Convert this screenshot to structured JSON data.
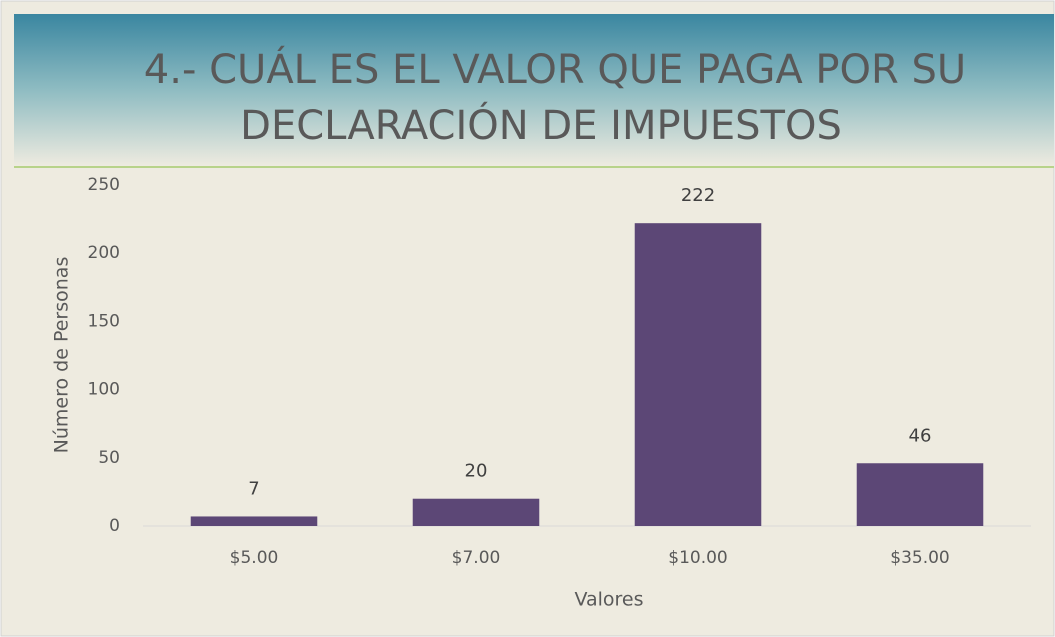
{
  "chart_data": {
    "type": "bar",
    "title": [
      "4.- CUÁL ES EL VALOR QUE PAGA  POR SU",
      "DECLARACIÓN DE IMPUESTOS"
    ],
    "x_label": "Valores",
    "y_label": "Número de Personas",
    "categories": [
      "$5.00",
      "$7.00",
      "$10.00",
      "$35.00"
    ],
    "values": [
      7,
      20,
      222,
      46
    ],
    "color": "#5c4776",
    "ylim": [
      0,
      250
    ],
    "yticks": [
      0,
      50,
      100,
      150,
      200,
      250
    ],
    "grid": false
  }
}
